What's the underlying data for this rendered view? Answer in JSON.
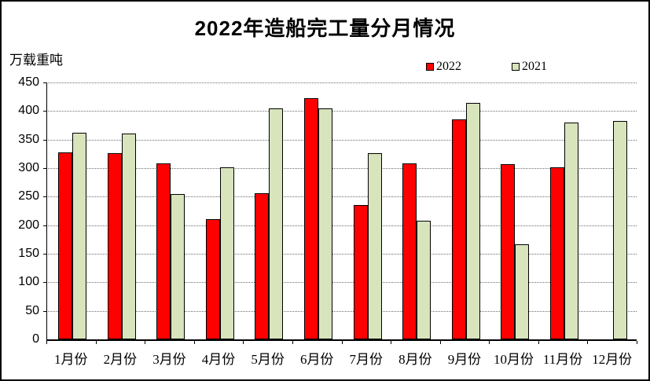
{
  "title": "2022年造船完工量分月情况",
  "y_axis_unit": "万载重吨",
  "legend": [
    {
      "label": "2022",
      "color": "#FE0000"
    },
    {
      "label": "2021",
      "color": "#D7E4BC"
    }
  ],
  "chart_data": {
    "type": "bar",
    "title": "2022年造船完工量分月情况",
    "xlabel": "",
    "ylabel": "万载重吨",
    "ylim": [
      0,
      450
    ],
    "ytick_interval": 50,
    "yticks": [
      0,
      50,
      100,
      150,
      200,
      250,
      300,
      350,
      400,
      450
    ],
    "grid": "horizontal-dotted",
    "legend_position": "top-right",
    "categories": [
      "1月份",
      "2月份",
      "3月份",
      "4月份",
      "5月份",
      "6月份",
      "7月份",
      "8月份",
      "9月份",
      "10月份",
      "11月份",
      "12月份"
    ],
    "series": [
      {
        "name": "2022",
        "color": "#FE0000",
        "values": [
          327,
          326,
          308,
          210,
          256,
          422,
          235,
          308,
          386,
          307,
          302,
          null
        ]
      },
      {
        "name": "2021",
        "color": "#D7E4BC",
        "values": [
          362,
          361,
          255,
          301,
          405,
          405,
          326,
          208,
          414,
          166,
          380,
          382
        ]
      }
    ]
  }
}
